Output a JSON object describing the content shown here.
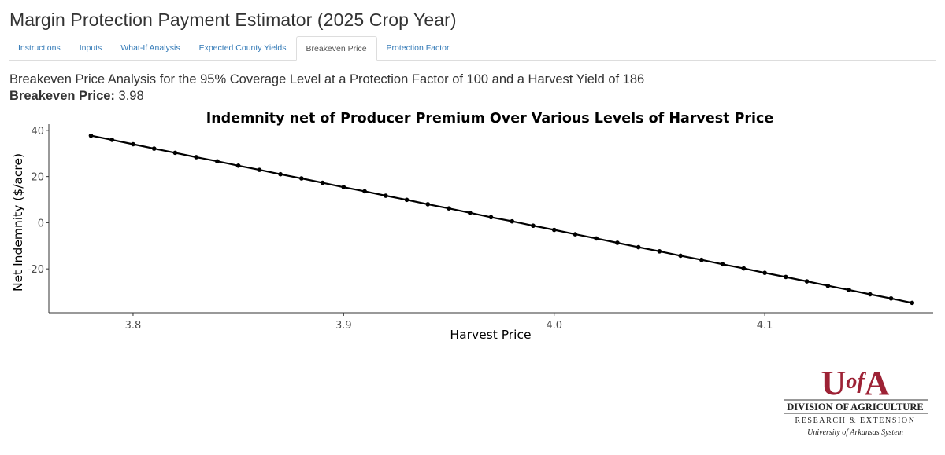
{
  "app": {
    "title": "Margin Protection Payment Estimator (2025 Crop Year)"
  },
  "tabs": [
    {
      "label": "Instructions",
      "active": false
    },
    {
      "label": "Inputs",
      "active": false
    },
    {
      "label": "What-If Analysis",
      "active": false
    },
    {
      "label": "Expected County Yields",
      "active": false
    },
    {
      "label": "Breakeven Price",
      "active": true
    },
    {
      "label": "Protection Factor",
      "active": false
    }
  ],
  "analysis": {
    "description": "Breakeven Price Analysis for the 95% Coverage Level at a Protection Factor of 100 and a Harvest Yield of 186",
    "breakeven_label": "Breakeven Price:",
    "breakeven_value": "3.98"
  },
  "chart_data": {
    "type": "line",
    "title": "Indemnity net of Producer Premium Over Various Levels of Harvest Price",
    "xlabel": "Harvest Price",
    "ylabel": "Net Indemnity ($/acre)",
    "xlim": [
      3.76,
      4.18
    ],
    "ylim": [
      -39,
      42
    ],
    "x_ticks": [
      3.8,
      3.9,
      4.0,
      4.1
    ],
    "x_tick_labels": [
      "3.8",
      "3.9",
      "4.0",
      "4.1"
    ],
    "y_ticks": [
      -20,
      0,
      20,
      40
    ],
    "y_tick_labels": [
      "-20",
      "0",
      "20",
      "40"
    ],
    "grid": false,
    "legend": "none",
    "line_color": "#000000",
    "series": [
      {
        "x": [
          3.78,
          3.79,
          3.8,
          3.81,
          3.82,
          3.83,
          3.84,
          3.85,
          3.86,
          3.87,
          3.88,
          3.89,
          3.9,
          3.91,
          3.92,
          3.93,
          3.94,
          3.95,
          3.96,
          3.97,
          3.98,
          3.99,
          4.0,
          4.01,
          4.02,
          4.03,
          4.04,
          4.05,
          4.06,
          4.07,
          4.08,
          4.09,
          4.1,
          4.11,
          4.12,
          4.13,
          4.14,
          4.15,
          4.16,
          4.17
        ],
        "values": [
          37.7,
          35.9,
          34.0,
          32.1,
          30.3,
          28.4,
          26.6,
          24.7,
          22.9,
          21.0,
          19.2,
          17.3,
          15.4,
          13.6,
          11.7,
          9.9,
          8.0,
          6.2,
          4.3,
          2.4,
          0.6,
          -1.3,
          -3.1,
          -5.0,
          -6.8,
          -8.7,
          -10.6,
          -12.4,
          -14.3,
          -16.1,
          -18.0,
          -19.8,
          -21.7,
          -23.5,
          -25.4,
          -27.3,
          -29.1,
          -31.0,
          -32.8,
          -34.7
        ]
      }
    ]
  },
  "logo": {
    "name": "UofA",
    "line1": "DIVISION OF AGRICULTURE",
    "line2": "RESEARCH & EXTENSION",
    "line3": "University of Arkansas System",
    "color": "#9d2235"
  }
}
